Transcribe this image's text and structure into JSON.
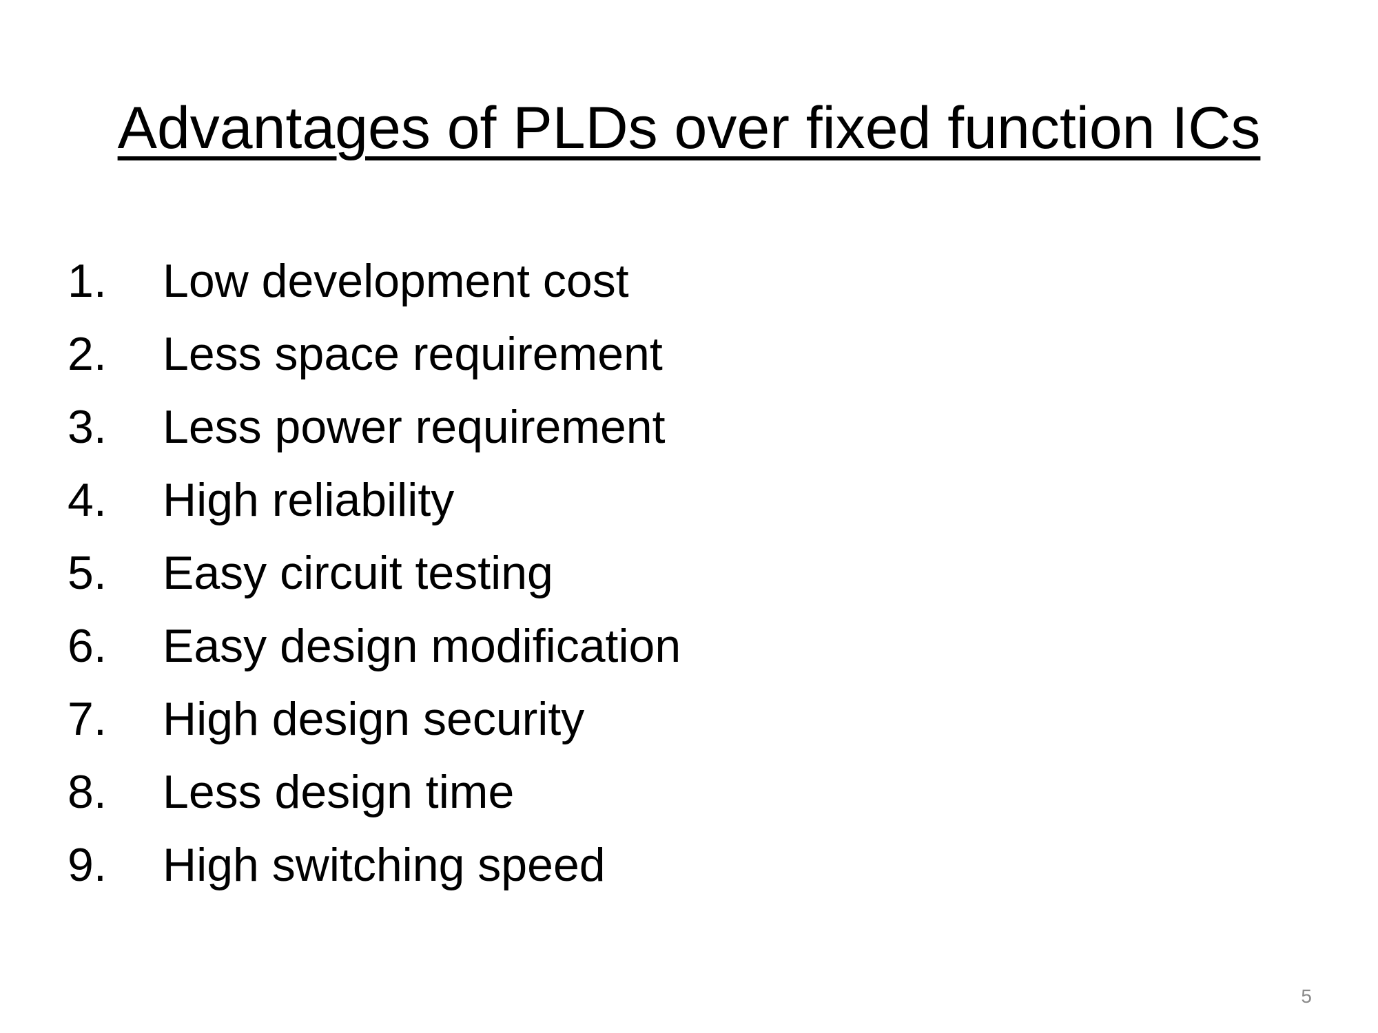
{
  "slide": {
    "title": "Advantages of PLDs over fixed function ICs",
    "items": [
      {
        "number": "1.",
        "text": "Low development cost"
      },
      {
        "number": "2.",
        "text": "Less space requirement"
      },
      {
        "number": "3.",
        "text": "Less power requirement"
      },
      {
        "number": "4.",
        "text": "High reliability"
      },
      {
        "number": "5.",
        "text": "Easy circuit testing"
      },
      {
        "number": "6.",
        "text": "Easy design modification"
      },
      {
        "number": "7.",
        "text": "High design security"
      },
      {
        "number": "8.",
        "text": "Less design time"
      },
      {
        "number": "9.",
        "text": "High switching speed"
      }
    ],
    "page_number": "5"
  }
}
